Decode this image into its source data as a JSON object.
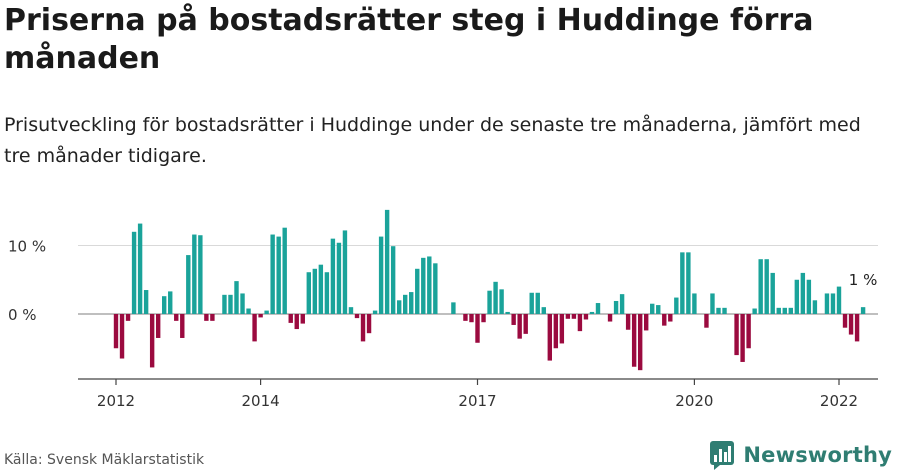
{
  "header": {
    "title": "Priserna på bostadsrätter steg i Huddinge förra månaden",
    "subtitle": "Prisutveckling för bostadsrätter i Huddinge under de senaste tre månaderna, jämfört med tre månader tidigare."
  },
  "footer": {
    "source": "Källa: Svensk Mäklarstatistik",
    "brand": "Newsworthy"
  },
  "colors": {
    "positive": "#1aa39a",
    "negative": "#9b0a3f",
    "brand": "#2f7d72"
  },
  "chart_data": {
    "type": "bar",
    "ylim": [
      -10,
      15
    ],
    "y_ticks": [
      0,
      10
    ],
    "y_tick_labels": [
      "0 %",
      "10 %"
    ],
    "x_ticks": [
      2012,
      2014,
      2017,
      2020,
      2022
    ],
    "grid": true,
    "last_value_label": "1 %",
    "start": "2012-01",
    "values": [
      -5,
      -6.5,
      -1,
      12,
      13.2,
      3.5,
      -7.8,
      -3.5,
      2.6,
      3.3,
      -1,
      -3.5,
      8.6,
      11.6,
      11.5,
      -1,
      -1,
      0,
      2.8,
      2.8,
      4.8,
      3,
      0.8,
      -4,
      -0.5,
      0.5,
      11.6,
      11.3,
      12.6,
      -1.3,
      -2.2,
      -1.4,
      6.1,
      6.6,
      7.2,
      6.1,
      11,
      10.4,
      12.2,
      1,
      -0.6,
      -4,
      -2.8,
      0.5,
      11.3,
      15.2,
      9.9,
      2,
      2.8,
      3.2,
      6.6,
      8.2,
      8.4,
      7.4,
      0,
      0,
      1.7,
      0,
      -1,
      -1.2,
      -4.2,
      -1.2,
      3.4,
      4.7,
      3.6,
      0.3,
      -1.6,
      -3.6,
      -2.9,
      3.1,
      3.1,
      1,
      -6.8,
      -5,
      -4.3,
      -0.7,
      -0.7,
      -2.5,
      -0.8,
      0.3,
      1.6,
      0,
      -1.1,
      1.9,
      2.9,
      -2.3,
      -7.7,
      -8.2,
      -2.4,
      1.5,
      1.3,
      -1.7,
      -1.1,
      2.4,
      9,
      9,
      3,
      0,
      -2,
      3,
      0.9,
      0.9,
      0,
      -6,
      -7,
      -5,
      0.8,
      8,
      8,
      6,
      0.9,
      0.9,
      0.9,
      5,
      6,
      5,
      2,
      0,
      3,
      3,
      4,
      -2,
      -3,
      -4,
      1
    ]
  }
}
